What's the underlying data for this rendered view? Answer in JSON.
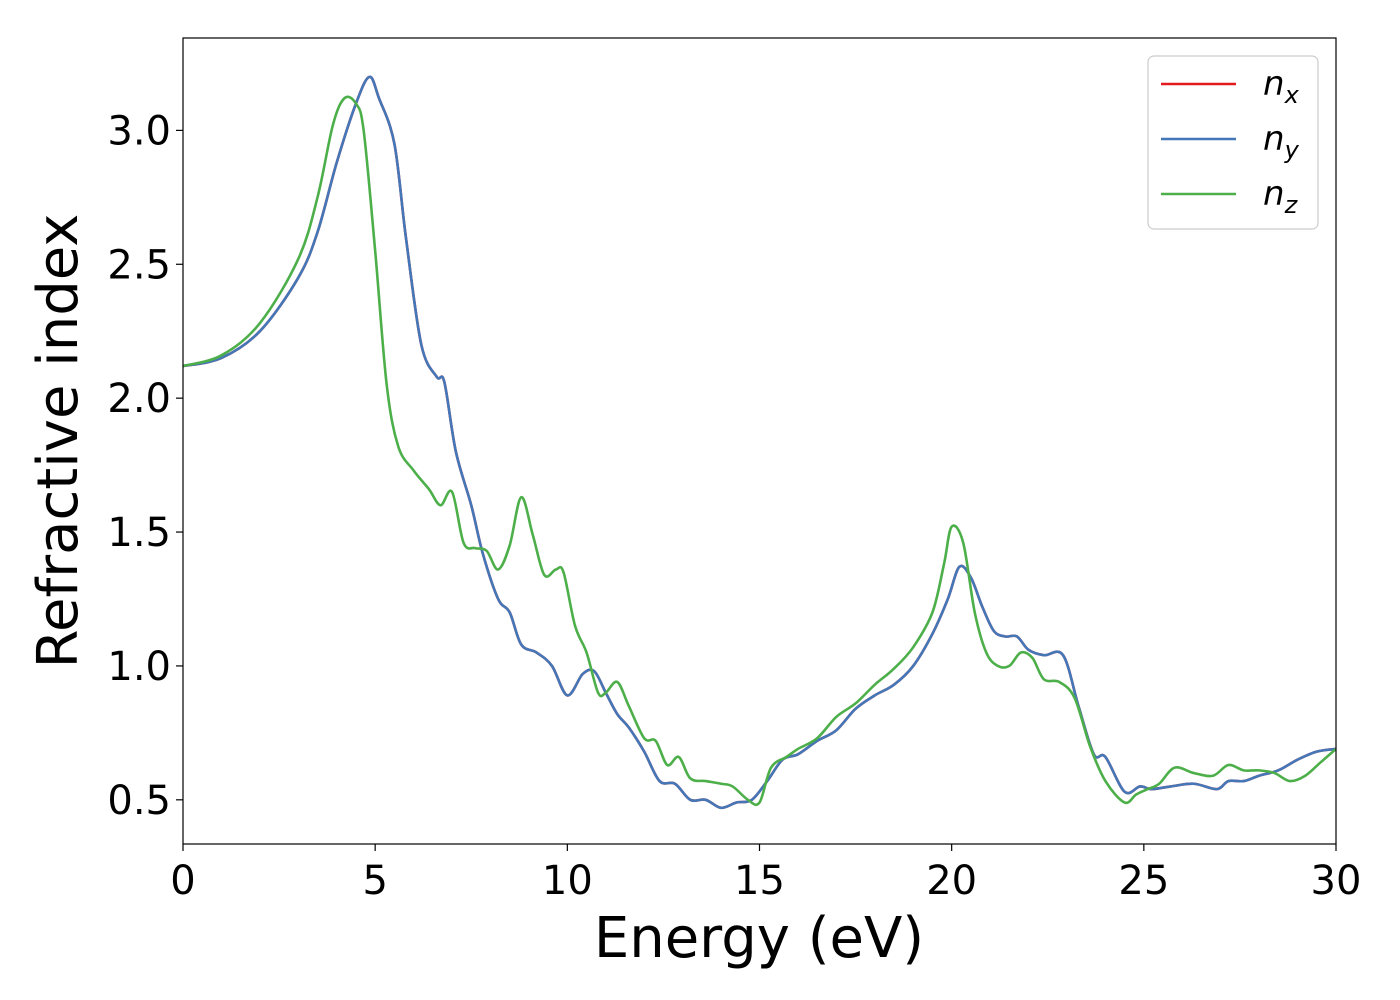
{
  "chart_data": {
    "type": "line",
    "xlabel": "Energy (eV)",
    "ylabel": "Refractive index",
    "xlim": [
      0,
      30
    ],
    "ylim": [
      0.335,
      3.345
    ],
    "xticks": [
      "0",
      "5",
      "10",
      "15",
      "20",
      "25",
      "30"
    ],
    "yticks": [
      "0.5",
      "1.0",
      "1.5",
      "2.0",
      "2.5",
      "3.0"
    ],
    "grid": false,
    "legend_position": "top-right",
    "series": [
      {
        "name": "n",
        "subscript": "x",
        "color": "#e41a1c",
        "x": [
          0,
          1,
          2,
          3,
          3.5,
          4,
          4.5,
          4.85,
          5.1,
          5.5,
          5.8,
          6.2,
          6.6,
          6.8,
          7.1,
          7.5,
          7.8,
          8.2,
          8.5,
          8.8,
          9.2,
          9.6,
          10.0,
          10.4,
          10.7,
          11.0,
          11.3,
          11.6,
          12.0,
          12.4,
          12.8,
          13.2,
          13.6,
          14.0,
          14.4,
          14.8,
          15.2,
          15.6,
          16.0,
          16.5,
          17.0,
          17.5,
          18.0,
          18.5,
          19.0,
          19.5,
          19.9,
          20.2,
          20.5,
          20.8,
          21.1,
          21.4,
          21.7,
          22.0,
          22.4,
          22.9,
          23.3,
          23.7,
          24.0,
          24.5,
          24.9,
          25.2,
          25.7,
          26.3,
          26.9,
          27.2,
          27.6,
          28.0,
          28.5,
          29.0,
          29.5,
          30.0
        ],
        "y": [
          2.12,
          2.15,
          2.25,
          2.45,
          2.62,
          2.88,
          3.1,
          3.2,
          3.12,
          2.95,
          2.6,
          2.2,
          2.08,
          2.06,
          1.8,
          1.6,
          1.42,
          1.25,
          1.2,
          1.08,
          1.05,
          1.0,
          0.89,
          0.97,
          0.98,
          0.9,
          0.82,
          0.77,
          0.68,
          0.57,
          0.56,
          0.5,
          0.5,
          0.47,
          0.49,
          0.5,
          0.57,
          0.65,
          0.67,
          0.72,
          0.76,
          0.84,
          0.89,
          0.93,
          1.0,
          1.12,
          1.25,
          1.37,
          1.33,
          1.22,
          1.13,
          1.11,
          1.11,
          1.06,
          1.04,
          1.04,
          0.85,
          0.67,
          0.66,
          0.53,
          0.55,
          0.54,
          0.55,
          0.56,
          0.54,
          0.57,
          0.57,
          0.59,
          0.61,
          0.65,
          0.68,
          0.69
        ]
      },
      {
        "name": "n",
        "subscript": "y",
        "color": "#4477b8",
        "x": [
          0,
          1,
          2,
          3,
          3.5,
          4,
          4.5,
          4.85,
          5.1,
          5.5,
          5.8,
          6.2,
          6.6,
          6.8,
          7.1,
          7.5,
          7.8,
          8.2,
          8.5,
          8.8,
          9.2,
          9.6,
          10.0,
          10.4,
          10.7,
          11.0,
          11.3,
          11.6,
          12.0,
          12.4,
          12.8,
          13.2,
          13.6,
          14.0,
          14.4,
          14.8,
          15.2,
          15.6,
          16.0,
          16.5,
          17.0,
          17.5,
          18.0,
          18.5,
          19.0,
          19.5,
          19.9,
          20.2,
          20.5,
          20.8,
          21.1,
          21.4,
          21.7,
          22.0,
          22.4,
          22.9,
          23.3,
          23.7,
          24.0,
          24.5,
          24.9,
          25.2,
          25.7,
          26.3,
          26.9,
          27.2,
          27.6,
          28.0,
          28.5,
          29.0,
          29.5,
          30.0
        ],
        "y": [
          2.12,
          2.15,
          2.25,
          2.45,
          2.62,
          2.88,
          3.1,
          3.2,
          3.12,
          2.95,
          2.6,
          2.2,
          2.08,
          2.06,
          1.8,
          1.6,
          1.42,
          1.25,
          1.2,
          1.08,
          1.05,
          1.0,
          0.89,
          0.97,
          0.98,
          0.9,
          0.82,
          0.77,
          0.68,
          0.57,
          0.56,
          0.5,
          0.5,
          0.47,
          0.49,
          0.5,
          0.57,
          0.65,
          0.67,
          0.72,
          0.76,
          0.84,
          0.89,
          0.93,
          1.0,
          1.12,
          1.25,
          1.37,
          1.33,
          1.22,
          1.13,
          1.11,
          1.11,
          1.06,
          1.04,
          1.04,
          0.85,
          0.67,
          0.66,
          0.53,
          0.55,
          0.54,
          0.55,
          0.56,
          0.54,
          0.57,
          0.57,
          0.59,
          0.61,
          0.65,
          0.68,
          0.69
        ]
      },
      {
        "name": "n",
        "subscript": "z",
        "color": "#4daf4a",
        "x": [
          0,
          1,
          2,
          3,
          3.5,
          3.9,
          4.2,
          4.5,
          4.7,
          5.0,
          5.3,
          5.6,
          6.0,
          6.4,
          6.7,
          7.0,
          7.3,
          7.6,
          7.9,
          8.2,
          8.5,
          8.8,
          9.1,
          9.4,
          9.7,
          9.9,
          10.2,
          10.5,
          10.8,
          11.0,
          11.3,
          11.6,
          12.0,
          12.3,
          12.6,
          12.9,
          13.2,
          13.6,
          14.0,
          14.3,
          14.7,
          15.0,
          15.3,
          15.7,
          16.0,
          16.5,
          17.0,
          17.5,
          18.0,
          18.5,
          19.0,
          19.5,
          19.8,
          20.0,
          20.3,
          20.6,
          20.9,
          21.2,
          21.5,
          21.8,
          22.1,
          22.4,
          22.8,
          23.2,
          23.6,
          24.0,
          24.5,
          24.8,
          25.1,
          25.4,
          25.8,
          26.3,
          26.8,
          27.2,
          27.6,
          28.0,
          28.4,
          28.8,
          29.2,
          29.6,
          30.0
        ],
        "y": [
          2.12,
          2.16,
          2.28,
          2.52,
          2.75,
          3.02,
          3.12,
          3.1,
          3.0,
          2.55,
          2.05,
          1.82,
          1.73,
          1.66,
          1.6,
          1.65,
          1.46,
          1.44,
          1.43,
          1.36,
          1.45,
          1.63,
          1.49,
          1.34,
          1.36,
          1.35,
          1.15,
          1.05,
          0.9,
          0.9,
          0.94,
          0.85,
          0.73,
          0.72,
          0.63,
          0.66,
          0.58,
          0.57,
          0.56,
          0.55,
          0.5,
          0.49,
          0.62,
          0.66,
          0.69,
          0.73,
          0.81,
          0.86,
          0.93,
          0.99,
          1.07,
          1.2,
          1.38,
          1.52,
          1.46,
          1.2,
          1.05,
          1.0,
          1.0,
          1.05,
          1.03,
          0.95,
          0.94,
          0.88,
          0.7,
          0.57,
          0.49,
          0.52,
          0.54,
          0.56,
          0.62,
          0.6,
          0.59,
          0.63,
          0.61,
          0.61,
          0.6,
          0.57,
          0.59,
          0.64,
          0.69
        ]
      }
    ]
  }
}
